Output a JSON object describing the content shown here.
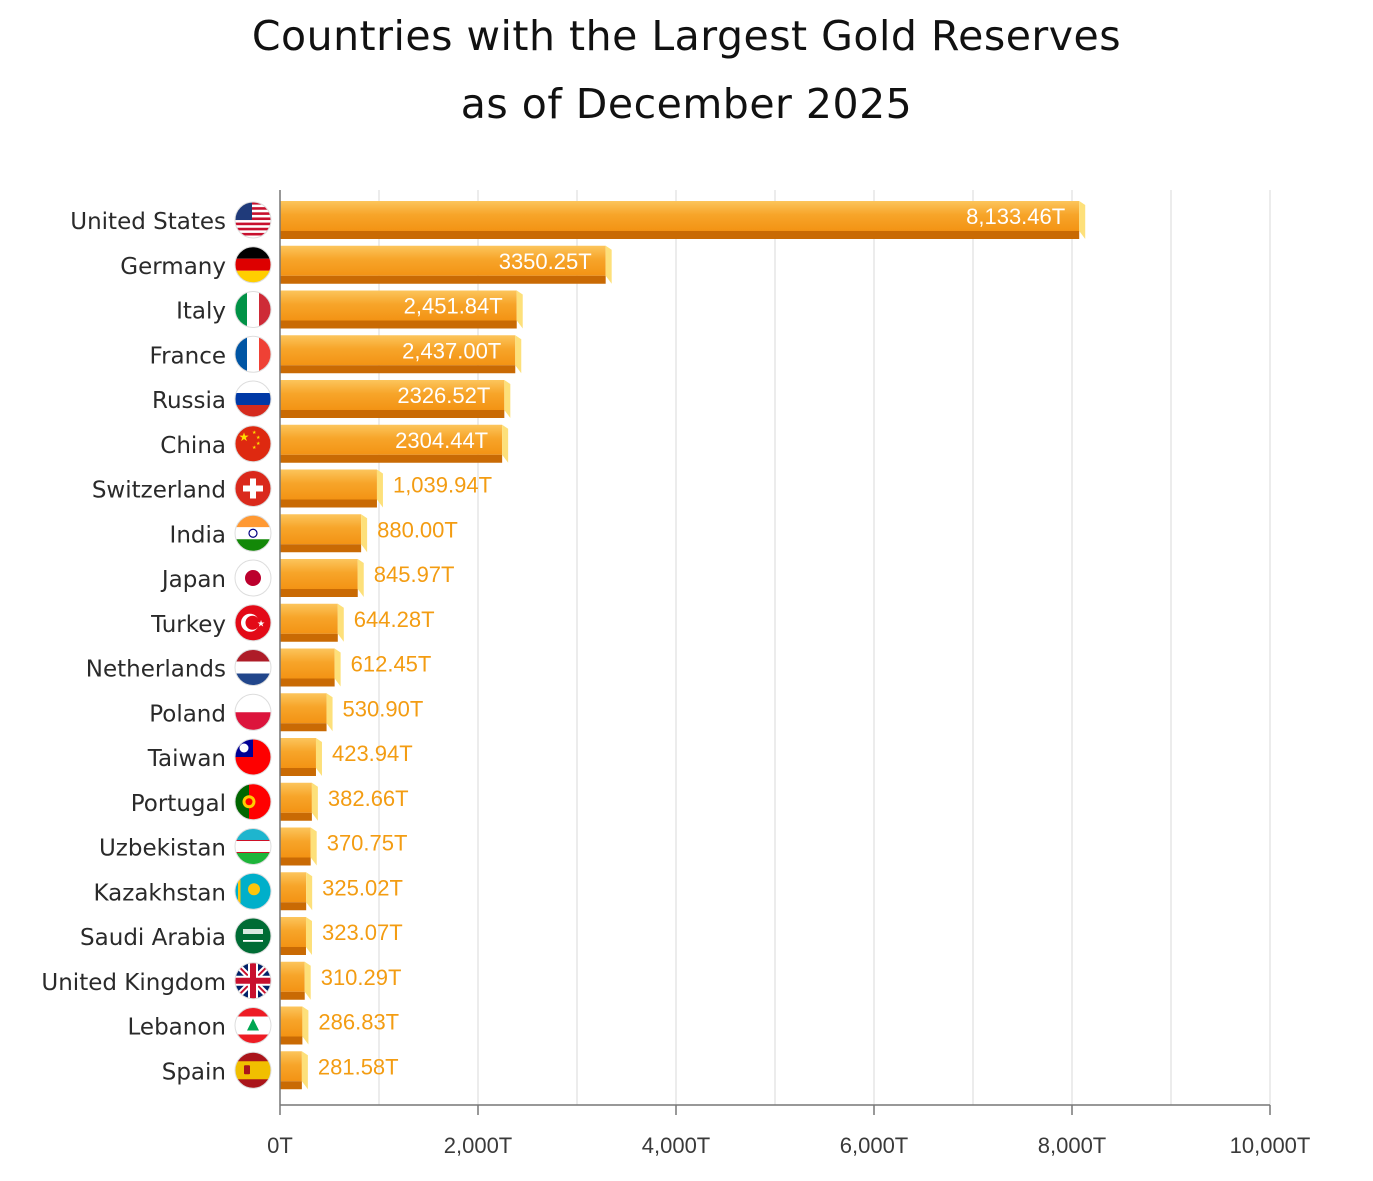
{
  "chart_data": {
    "type": "bar",
    "orientation": "horizontal",
    "title_line1": "Countries with the Largest Gold Reserves",
    "title_line2": "as of December 2025",
    "xlabel": "",
    "ylabel": "",
    "xlim": [
      0,
      10000
    ],
    "grid": "vertical",
    "categories": [
      "United States",
      "Germany",
      "Italy",
      "France",
      "Russia",
      "China",
      "Switzerland",
      "India",
      "Japan",
      "Turkey",
      "Netherlands",
      "Poland",
      "Taiwan",
      "Portugal",
      "Uzbekistan",
      "Kazakhstan",
      "Saudi Arabia",
      "United Kingdom",
      "Lebanon",
      "Spain"
    ],
    "values": [
      8133.46,
      3350.25,
      2451.84,
      2437.0,
      2326.52,
      2304.44,
      1039.94,
      880.0,
      845.97,
      644.28,
      612.45,
      530.9,
      423.94,
      382.66,
      370.75,
      325.02,
      323.07,
      310.29,
      286.83,
      281.58
    ],
    "value_labels": [
      "8,133.46T",
      "3350.25T",
      "2,451.84T",
      "2,437.00T",
      "2326.52T",
      "2304.44T",
      "1,039.94T",
      "880.00T",
      "845.97T",
      "644.28T",
      "612.45T",
      "530.90T",
      "423.94T",
      "382.66T",
      "370.75T",
      "325.02T",
      "323.07T",
      "310.29T",
      "286.83T",
      "281.58T"
    ],
    "flag_icons": [
      "us-flag-icon",
      "germany-flag-icon",
      "italy-flag-icon",
      "france-flag-icon",
      "russia-flag-icon",
      "china-flag-icon",
      "switzerland-flag-icon",
      "india-flag-icon",
      "japan-flag-icon",
      "turkey-flag-icon",
      "netherlands-flag-icon",
      "poland-flag-icon",
      "taiwan-flag-icon",
      "portugal-flag-icon",
      "uzbekistan-flag-icon",
      "kazakhstan-flag-icon",
      "saudi-arabia-flag-icon",
      "uk-flag-icon",
      "lebanon-flag-icon",
      "spain-flag-icon"
    ],
    "x_ticks": [
      0,
      2000,
      4000,
      6000,
      8000,
      10000
    ],
    "x_tick_labels": [
      "0T",
      "2,000T",
      "4,000T",
      "6,000T",
      "8,000T",
      "10,000T"
    ],
    "colors": {
      "bar_face": "#f7a52a",
      "bar_highlight": "#fcc55c",
      "bar_bottom": "#c96a04",
      "bar_end": "#fde07a",
      "value_label_inside": "#ffffff",
      "value_label_outside": "#f39c12",
      "gridline": "#e2e2e2",
      "axis": "#777777"
    }
  }
}
